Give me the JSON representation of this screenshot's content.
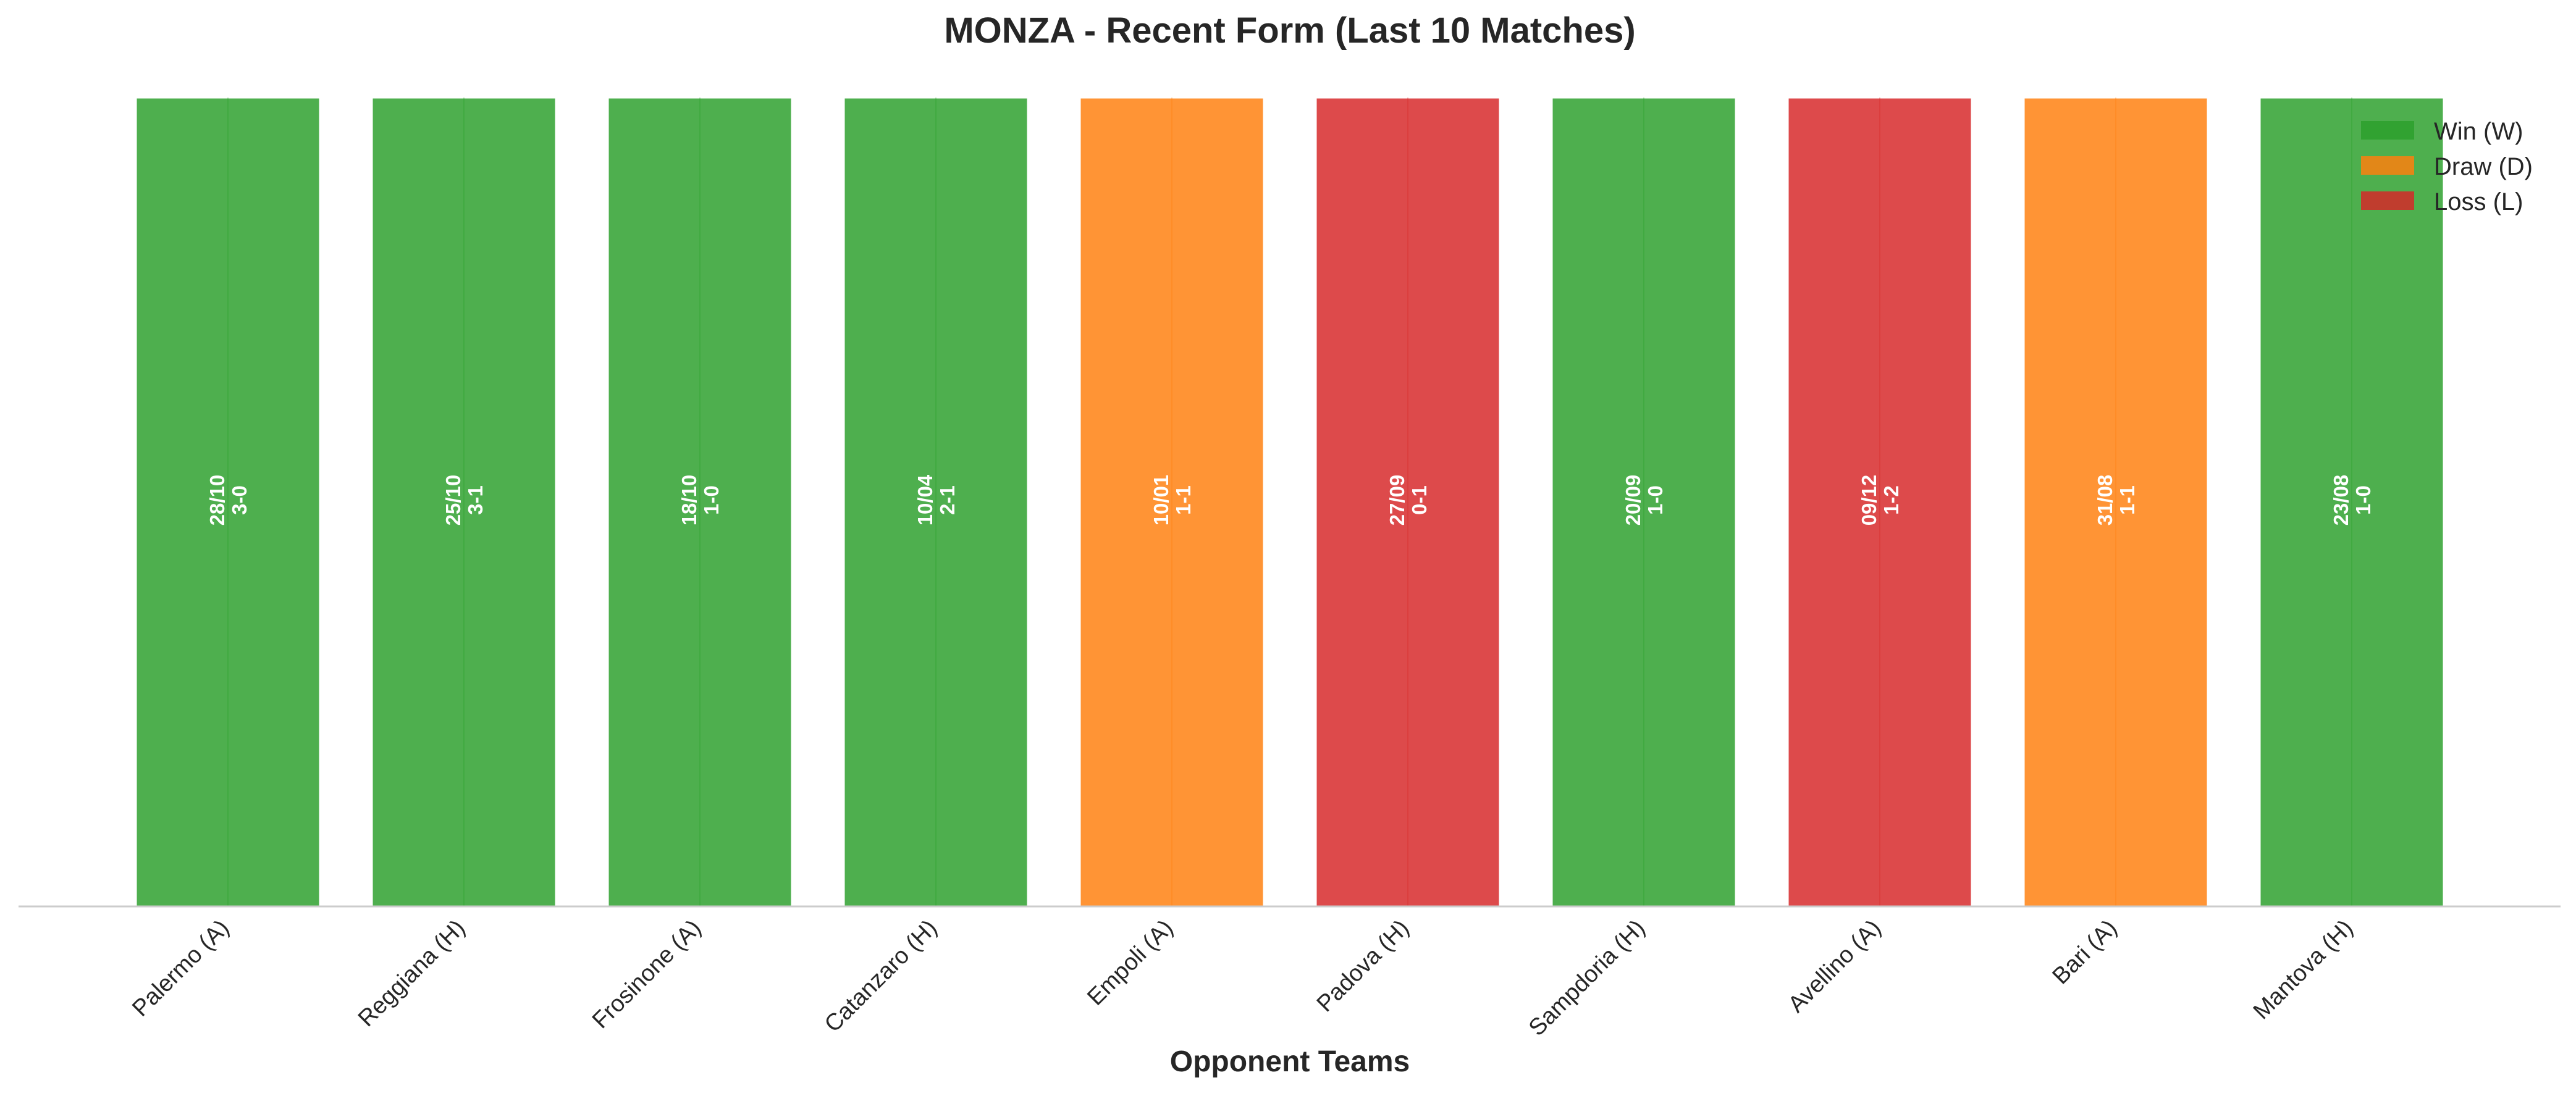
{
  "chart_data": {
    "type": "bar",
    "title": "MONZA - Recent Form (Last 10 Matches)",
    "xlabel": "Opponent Teams",
    "ylabel": "",
    "ylim": [
      0,
      1
    ],
    "grid": false,
    "legend_position": "top-right",
    "categories": [
      "Palermo (A)",
      "Reggiana (H)",
      "Frosinone (A)",
      "Catanzaro (H)",
      "Empoli (A)",
      "Padova (H)",
      "Sampdoria (H)",
      "Avellino (A)",
      "Bari (A)",
      "Mantova (H)"
    ],
    "values": [
      1,
      1,
      1,
      1,
      1,
      1,
      1,
      1,
      1,
      1
    ],
    "results": [
      "W",
      "W",
      "W",
      "W",
      "D",
      "L",
      "W",
      "L",
      "D",
      "W"
    ],
    "dates": [
      "28/10",
      "25/10",
      "18/10",
      "10/04",
      "10/01",
      "27/09",
      "20/09",
      "09/12",
      "31/08",
      "23/08"
    ],
    "scores": [
      "3-0",
      "3-1",
      "1-0",
      "2-1",
      "1-1",
      "0-1",
      "1-0",
      "1-2",
      "1-1",
      "1-0"
    ],
    "legend": [
      {
        "key": "W",
        "label": "Win (W)",
        "color": "#2ca02c"
      },
      {
        "key": "D",
        "label": "Draw (D)",
        "color": "#ff7f0e"
      },
      {
        "key": "L",
        "label": "Loss (L)",
        "color": "#d62728"
      }
    ]
  }
}
